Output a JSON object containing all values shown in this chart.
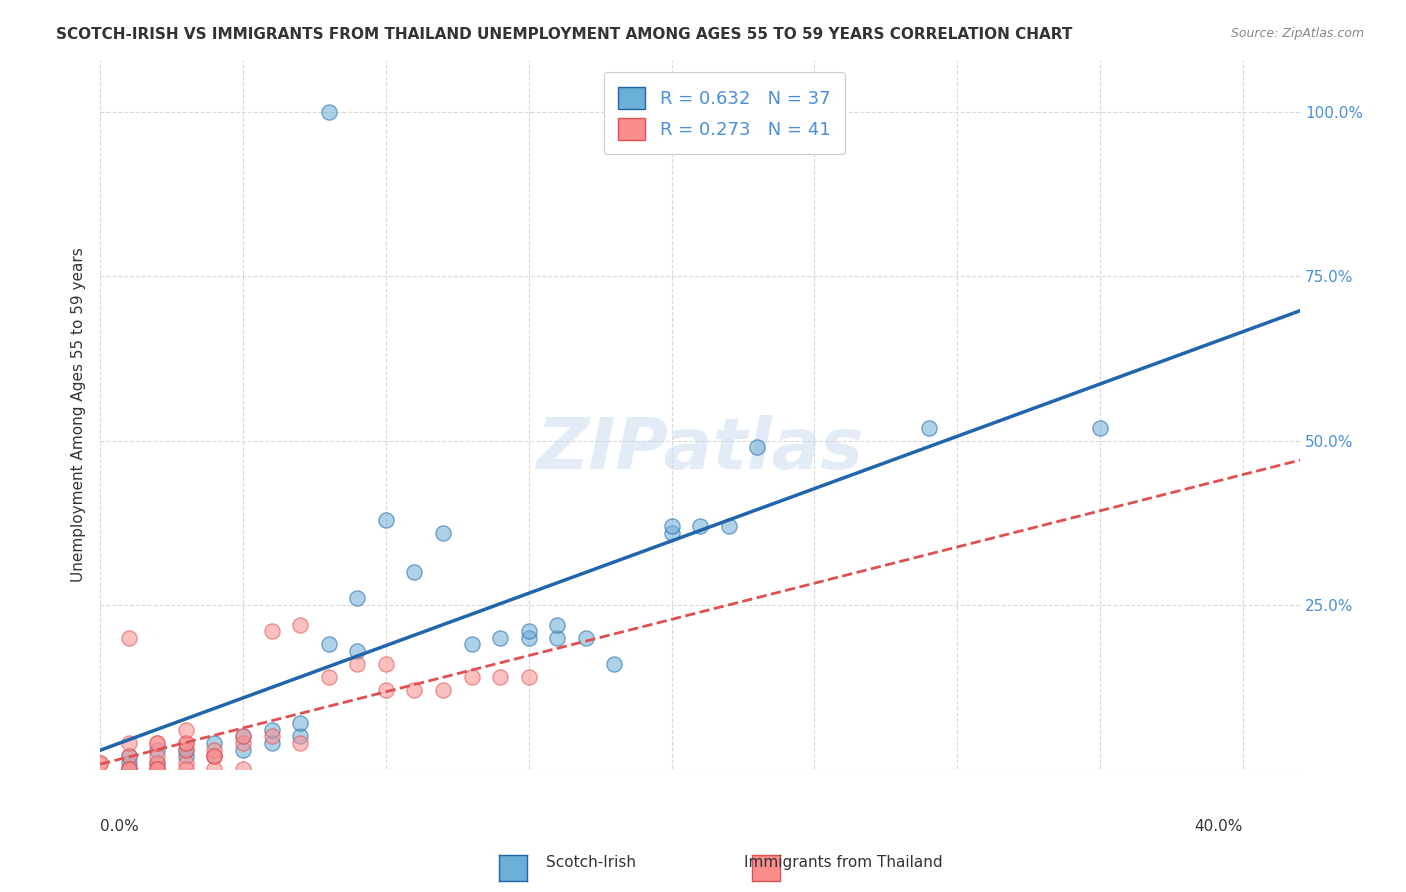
{
  "title": "SCOTCH-IRISH VS IMMIGRANTS FROM THAILAND UNEMPLOYMENT AMONG AGES 55 TO 59 YEARS CORRELATION CHART",
  "source": "Source: ZipAtlas.com",
  "ylabel": "Unemployment Among Ages 55 to 59 years",
  "legend_label1": "Scotch-Irish",
  "legend_label2": "Immigrants from Thailand",
  "R1": 0.632,
  "N1": 37,
  "R2": 0.273,
  "N2": 41,
  "blue_color": "#6baed6",
  "pink_color": "#fc8d8d",
  "blue_line_color": "#2166ac",
  "pink_line_color": "#e05050",
  "blue_scatter": [
    [
      0.01,
      0.01
    ],
    [
      0.01,
      0.02
    ],
    [
      0.02,
      0.01
    ],
    [
      0.02,
      0.03
    ],
    [
      0.01,
      0.0
    ],
    [
      0.03,
      0.02
    ],
    [
      0.03,
      0.03
    ],
    [
      0.04,
      0.02
    ],
    [
      0.04,
      0.04
    ],
    [
      0.05,
      0.03
    ],
    [
      0.05,
      0.05
    ],
    [
      0.06,
      0.04
    ],
    [
      0.06,
      0.06
    ],
    [
      0.07,
      0.05
    ],
    [
      0.07,
      0.07
    ],
    [
      0.08,
      0.19
    ],
    [
      0.09,
      0.26
    ],
    [
      0.09,
      0.18
    ],
    [
      0.1,
      0.38
    ],
    [
      0.11,
      0.3
    ],
    [
      0.12,
      0.36
    ],
    [
      0.13,
      0.19
    ],
    [
      0.14,
      0.2
    ],
    [
      0.15,
      0.2
    ],
    [
      0.15,
      0.21
    ],
    [
      0.16,
      0.2
    ],
    [
      0.16,
      0.22
    ],
    [
      0.17,
      0.2
    ],
    [
      0.18,
      0.16
    ],
    [
      0.2,
      0.36
    ],
    [
      0.2,
      0.37
    ],
    [
      0.21,
      0.37
    ],
    [
      0.22,
      0.37
    ],
    [
      0.23,
      0.49
    ],
    [
      0.29,
      0.52
    ],
    [
      0.35,
      0.52
    ],
    [
      0.08,
      1.0
    ]
  ],
  "pink_scatter": [
    [
      0.0,
      0.01
    ],
    [
      0.0,
      0.01
    ],
    [
      0.01,
      0.0
    ],
    [
      0.01,
      0.02
    ],
    [
      0.01,
      0.0
    ],
    [
      0.02,
      0.01
    ],
    [
      0.02,
      0.02
    ],
    [
      0.02,
      0.0
    ],
    [
      0.03,
      0.01
    ],
    [
      0.03,
      0.03
    ],
    [
      0.03,
      0.04
    ],
    [
      0.04,
      0.02
    ],
    [
      0.04,
      0.03
    ],
    [
      0.05,
      0.04
    ],
    [
      0.05,
      0.05
    ],
    [
      0.06,
      0.21
    ],
    [
      0.07,
      0.22
    ],
    [
      0.08,
      0.14
    ],
    [
      0.09,
      0.16
    ],
    [
      0.1,
      0.16
    ],
    [
      0.1,
      0.12
    ],
    [
      0.11,
      0.12
    ],
    [
      0.12,
      0.12
    ],
    [
      0.13,
      0.14
    ],
    [
      0.14,
      0.14
    ],
    [
      0.15,
      0.14
    ],
    [
      0.01,
      0.2
    ],
    [
      0.02,
      0.04
    ],
    [
      0.01,
      0.04
    ],
    [
      0.02,
      0.04
    ],
    [
      0.03,
      0.04
    ],
    [
      0.04,
      0.0
    ],
    [
      0.05,
      0.0
    ],
    [
      0.02,
      0.0
    ],
    [
      0.03,
      0.0
    ],
    [
      0.01,
      0.0
    ],
    [
      0.02,
      0.0
    ],
    [
      0.03,
      0.06
    ],
    [
      0.04,
      0.02
    ],
    [
      0.06,
      0.05
    ],
    [
      0.07,
      0.04
    ]
  ],
  "ylim": [
    0,
    1.08
  ],
  "xlim": [
    0,
    0.42
  ],
  "yticks": [
    0,
    0.25,
    0.5,
    0.75,
    1.0
  ],
  "ytick_labels": [
    "",
    "25.0%",
    "50.0%",
    "75.0%",
    "100.0%"
  ],
  "xtick_positions": [
    0,
    0.05,
    0.1,
    0.15,
    0.2,
    0.25,
    0.3,
    0.35,
    0.4
  ],
  "grid_color": "#d0d0d0",
  "watermark": "ZIPatlas",
  "background_color": "#ffffff"
}
